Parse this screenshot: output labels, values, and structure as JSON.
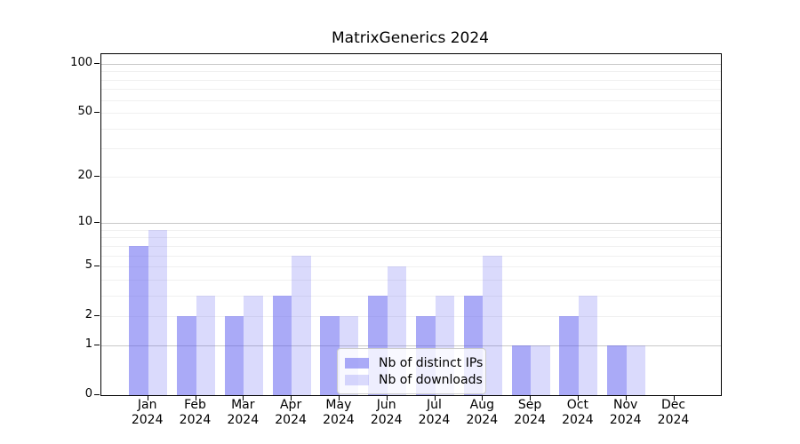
{
  "chart_data": {
    "type": "bar",
    "title": "MatrixGenerics 2024",
    "xlabel": "",
    "ylabel": "",
    "year_label": "2024",
    "categories": [
      "Jan",
      "Feb",
      "Mar",
      "Apr",
      "May",
      "Jun",
      "Jul",
      "Aug",
      "Sep",
      "Oct",
      "Nov",
      "Dec"
    ],
    "series": [
      {
        "name": "Nb of distinct IPs",
        "color": "rgba(85,85,240,0.5)",
        "values": [
          7,
          2,
          2,
          3,
          2,
          3,
          2,
          3,
          1,
          2,
          1,
          0
        ]
      },
      {
        "name": "Nb of downloads",
        "color": "rgba(85,85,240,0.22)",
        "values": [
          9,
          3,
          3,
          6,
          2,
          5,
          3,
          6,
          1,
          3,
          1,
          0
        ]
      }
    ],
    "y_scale": "log1p",
    "ylim": [
      0,
      114.3
    ],
    "y_tick_values": [
      0,
      1,
      2,
      5,
      10,
      20,
      50,
      100
    ],
    "y_tick_labels": [
      "0",
      "1",
      "2",
      "5",
      "10",
      "20",
      "50",
      "100"
    ],
    "gridlines_minor": [
      2,
      3,
      4,
      5,
      6,
      7,
      8,
      9,
      20,
      30,
      40,
      50,
      60,
      70,
      80,
      90
    ],
    "gridlines_major": [
      1,
      10,
      100
    ],
    "grid": true,
    "legend_position": "lower center"
  },
  "colors": {
    "background": "#ffffff",
    "axis": "#000000",
    "grid_minor": "#f0f0f0",
    "grid_major": "#c8c8c8",
    "bar_distinct_ips": "rgba(85,85,240,0.5)",
    "bar_downloads": "rgba(85,85,240,0.22)",
    "legend_border": "#cccccc"
  }
}
